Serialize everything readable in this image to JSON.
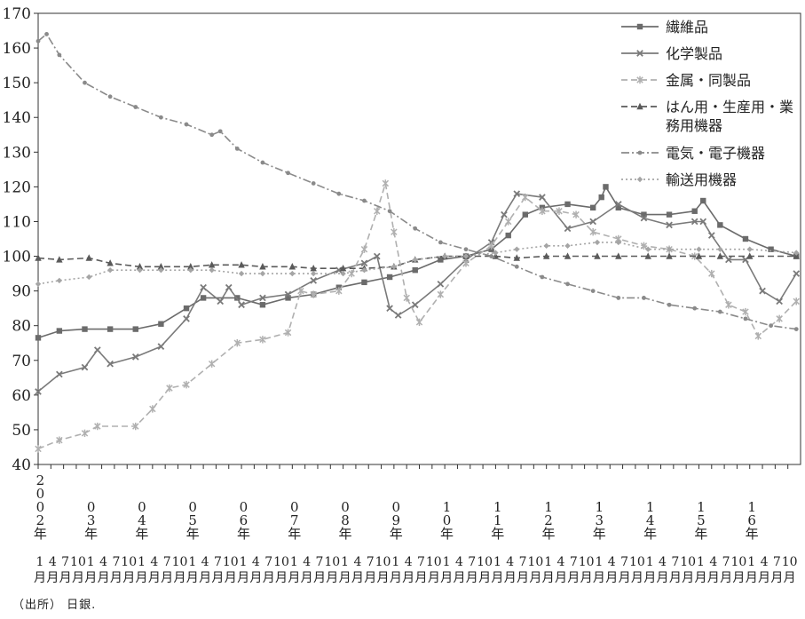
{
  "chart_data": {
    "type": "line",
    "title": "",
    "xlabel": "",
    "ylabel": "",
    "ylim": [
      40,
      170
    ],
    "yticks": [
      40,
      50,
      60,
      70,
      80,
      90,
      100,
      110,
      120,
      130,
      140,
      150,
      160,
      170
    ],
    "grid": false,
    "legend_position": "top-right",
    "x_range": [
      "2002-01",
      "2016-12"
    ],
    "x_years": [
      {
        "year": "2002",
        "year_chars": [
          "2",
          "0",
          "0",
          "2"
        ],
        "start": "2002-01"
      },
      {
        "year": "2003",
        "year_chars": [
          "0",
          "3"
        ],
        "start": "2003-01"
      },
      {
        "year": "2004",
        "year_chars": [
          "0",
          "4"
        ],
        "start": "2004-01"
      },
      {
        "year": "2005",
        "year_chars": [
          "0",
          "5"
        ],
        "start": "2005-01"
      },
      {
        "year": "2006",
        "year_chars": [
          "0",
          "6"
        ],
        "start": "2006-01"
      },
      {
        "year": "2007",
        "year_chars": [
          "0",
          "7"
        ],
        "start": "2007-01"
      },
      {
        "year": "2008",
        "year_chars": [
          "0",
          "8"
        ],
        "start": "2008-01"
      },
      {
        "year": "2009",
        "year_chars": [
          "0",
          "9"
        ],
        "start": "2009-01"
      },
      {
        "year": "2010",
        "year_chars": [
          "1",
          "0"
        ],
        "start": "2010-01"
      },
      {
        "year": "2011",
        "year_chars": [
          "1",
          "1"
        ],
        "start": "2011-01"
      },
      {
        "year": "2012",
        "year_chars": [
          "1",
          "2"
        ],
        "start": "2012-01"
      },
      {
        "year": "2013",
        "year_chars": [
          "1",
          "3"
        ],
        "start": "2013-01"
      },
      {
        "year": "2014",
        "year_chars": [
          "1",
          "4"
        ],
        "start": "2014-01"
      },
      {
        "year": "2015",
        "year_chars": [
          "1",
          "5"
        ],
        "start": "2015-01"
      },
      {
        "year": "2016",
        "year_chars": [
          "1",
          "6"
        ],
        "start": "2016-01"
      }
    ],
    "year_suffix": "年",
    "month_ticks": [
      "1",
      "4",
      "7",
      "10"
    ],
    "month_suffix": "月",
    "series": [
      {
        "name": "繊維品",
        "color": "#6b6b6b",
        "dash": "solid",
        "marker": "square",
        "points": [
          [
            "2002-01",
            76.5
          ],
          [
            "2002-06",
            78.5
          ],
          [
            "2002-12",
            79
          ],
          [
            "2003-06",
            79
          ],
          [
            "2003-12",
            79
          ],
          [
            "2004-06",
            80.5
          ],
          [
            "2004-12",
            85
          ],
          [
            "2005-04",
            88
          ],
          [
            "2005-12",
            88
          ],
          [
            "2006-06",
            86
          ],
          [
            "2006-12",
            88
          ],
          [
            "2007-06",
            89
          ],
          [
            "2007-12",
            91
          ],
          [
            "2008-06",
            92.5
          ],
          [
            "2008-12",
            94
          ],
          [
            "2009-06",
            96
          ],
          [
            "2009-12",
            99
          ],
          [
            "2010-06",
            100
          ],
          [
            "2010-12",
            102
          ],
          [
            "2011-04",
            106
          ],
          [
            "2011-08",
            112
          ],
          [
            "2011-12",
            114
          ],
          [
            "2012-06",
            115
          ],
          [
            "2012-12",
            114
          ],
          [
            "2013-02",
            117
          ],
          [
            "2013-03",
            120
          ],
          [
            "2013-06",
            114
          ],
          [
            "2013-12",
            112
          ],
          [
            "2014-06",
            112
          ],
          [
            "2014-12",
            113
          ],
          [
            "2015-02",
            116
          ],
          [
            "2015-06",
            109
          ],
          [
            "2015-12",
            105
          ],
          [
            "2016-06",
            102
          ],
          [
            "2016-12",
            100
          ]
        ]
      },
      {
        "name": "化学製品",
        "color": "#7a7a7a",
        "dash": "solid",
        "marker": "x",
        "points": [
          [
            "2002-01",
            61
          ],
          [
            "2002-06",
            66
          ],
          [
            "2002-12",
            68
          ],
          [
            "2003-03",
            73
          ],
          [
            "2003-06",
            69
          ],
          [
            "2003-12",
            71
          ],
          [
            "2004-06",
            74
          ],
          [
            "2004-12",
            82
          ],
          [
            "2005-04",
            91
          ],
          [
            "2005-08",
            87
          ],
          [
            "2005-10",
            91
          ],
          [
            "2006-01",
            86
          ],
          [
            "2006-06",
            88
          ],
          [
            "2006-12",
            89
          ],
          [
            "2007-06",
            93
          ],
          [
            "2007-12",
            96
          ],
          [
            "2008-06",
            98
          ],
          [
            "2008-09",
            100
          ],
          [
            "2008-12",
            85
          ],
          [
            "2009-02",
            83
          ],
          [
            "2009-06",
            86
          ],
          [
            "2009-12",
            92
          ],
          [
            "2010-06",
            99
          ],
          [
            "2010-12",
            104
          ],
          [
            "2011-03",
            112
          ],
          [
            "2011-06",
            118
          ],
          [
            "2011-12",
            117
          ],
          [
            "2012-06",
            108
          ],
          [
            "2012-12",
            110
          ],
          [
            "2013-06",
            115
          ],
          [
            "2013-12",
            111
          ],
          [
            "2014-06",
            109
          ],
          [
            "2014-12",
            110
          ],
          [
            "2015-02",
            110
          ],
          [
            "2015-04",
            106
          ],
          [
            "2015-08",
            99
          ],
          [
            "2015-12",
            99
          ],
          [
            "2016-04",
            90
          ],
          [
            "2016-08",
            87
          ],
          [
            "2016-12",
            95
          ]
        ]
      },
      {
        "name": "金属・同製品",
        "color": "#b0b0b0",
        "dash": "dashed",
        "marker": "asterisk",
        "points": [
          [
            "2002-01",
            44.5
          ],
          [
            "2002-06",
            47
          ],
          [
            "2002-12",
            49
          ],
          [
            "2003-03",
            51
          ],
          [
            "2003-12",
            51
          ],
          [
            "2004-04",
            56
          ],
          [
            "2004-08",
            62
          ],
          [
            "2004-12",
            63
          ],
          [
            "2005-06",
            69
          ],
          [
            "2005-12",
            75
          ],
          [
            "2006-06",
            76
          ],
          [
            "2006-12",
            78
          ],
          [
            "2007-03",
            90
          ],
          [
            "2007-06",
            89
          ],
          [
            "2007-12",
            90
          ],
          [
            "2008-03",
            95
          ],
          [
            "2008-06",
            102
          ],
          [
            "2008-09",
            113
          ],
          [
            "2008-11",
            121
          ],
          [
            "2009-01",
            107
          ],
          [
            "2009-04",
            88
          ],
          [
            "2009-07",
            81
          ],
          [
            "2009-12",
            89
          ],
          [
            "2010-06",
            98
          ],
          [
            "2010-12",
            103
          ],
          [
            "2011-04",
            110
          ],
          [
            "2011-08",
            117
          ],
          [
            "2011-12",
            113
          ],
          [
            "2012-04",
            113
          ],
          [
            "2012-08",
            112
          ],
          [
            "2012-12",
            107
          ],
          [
            "2013-06",
            105
          ],
          [
            "2013-12",
            103
          ],
          [
            "2014-06",
            102
          ],
          [
            "2014-12",
            100
          ],
          [
            "2015-04",
            95
          ],
          [
            "2015-08",
            86
          ],
          [
            "2015-12",
            84
          ],
          [
            "2016-03",
            77
          ],
          [
            "2016-08",
            82
          ],
          [
            "2016-12",
            87
          ]
        ]
      },
      {
        "name": "はん用・生産用・業務用機器",
        "color": "#5a5a5a",
        "dash": "dashed",
        "marker": "triangle",
        "points": [
          [
            "2002-01",
            99.5
          ],
          [
            "2002-06",
            99
          ],
          [
            "2003-01",
            99.5
          ],
          [
            "2003-06",
            98
          ],
          [
            "2004-01",
            97
          ],
          [
            "2004-06",
            97
          ],
          [
            "2005-01",
            97
          ],
          [
            "2005-06",
            97.5
          ],
          [
            "2006-01",
            97.5
          ],
          [
            "2006-06",
            97
          ],
          [
            "2007-01",
            97
          ],
          [
            "2007-06",
            96.5
          ],
          [
            "2008-01",
            96.5
          ],
          [
            "2008-06",
            96.5
          ],
          [
            "2009-01",
            97
          ],
          [
            "2009-06",
            99
          ],
          [
            "2010-01",
            100
          ],
          [
            "2010-06",
            100
          ],
          [
            "2011-01",
            100
          ],
          [
            "2011-06",
            99.5
          ],
          [
            "2012-01",
            100
          ],
          [
            "2012-06",
            100
          ],
          [
            "2013-01",
            100
          ],
          [
            "2013-06",
            100
          ],
          [
            "2014-01",
            100
          ],
          [
            "2014-06",
            100
          ],
          [
            "2015-01",
            100
          ],
          [
            "2015-06",
            100
          ],
          [
            "2016-01",
            100
          ],
          [
            "2016-12",
            100
          ]
        ]
      },
      {
        "name": "電気・電子機器",
        "color": "#8a8a8a",
        "dash": "dashdot",
        "marker": "dot",
        "points": [
          [
            "2002-01",
            162
          ],
          [
            "2002-03",
            164
          ],
          [
            "2002-06",
            158
          ],
          [
            "2002-12",
            150
          ],
          [
            "2003-06",
            146
          ],
          [
            "2003-12",
            143
          ],
          [
            "2004-06",
            140
          ],
          [
            "2004-12",
            138
          ],
          [
            "2005-06",
            135
          ],
          [
            "2005-08",
            136
          ],
          [
            "2005-12",
            131
          ],
          [
            "2006-06",
            127
          ],
          [
            "2006-12",
            124
          ],
          [
            "2007-06",
            121
          ],
          [
            "2007-12",
            118
          ],
          [
            "2008-06",
            116
          ],
          [
            "2008-12",
            113
          ],
          [
            "2009-06",
            108
          ],
          [
            "2009-12",
            104
          ],
          [
            "2010-06",
            102
          ],
          [
            "2010-12",
            100
          ],
          [
            "2011-06",
            97
          ],
          [
            "2011-12",
            94
          ],
          [
            "2012-06",
            92
          ],
          [
            "2012-12",
            90
          ],
          [
            "2013-06",
            88
          ],
          [
            "2013-12",
            88
          ],
          [
            "2014-06",
            86
          ],
          [
            "2014-12",
            85
          ],
          [
            "2015-06",
            84
          ],
          [
            "2015-12",
            82
          ],
          [
            "2016-06",
            80
          ],
          [
            "2016-12",
            79
          ]
        ]
      },
      {
        "name": "輸送用機器",
        "color": "#a5a5a5",
        "dash": "dotted",
        "marker": "diamond",
        "points": [
          [
            "2002-01",
            92
          ],
          [
            "2002-06",
            93
          ],
          [
            "2003-01",
            94
          ],
          [
            "2003-06",
            96
          ],
          [
            "2004-01",
            96
          ],
          [
            "2004-06",
            96
          ],
          [
            "2005-01",
            96
          ],
          [
            "2005-06",
            96
          ],
          [
            "2006-01",
            95
          ],
          [
            "2006-06",
            95
          ],
          [
            "2007-01",
            95
          ],
          [
            "2007-06",
            95
          ],
          [
            "2008-01",
            95
          ],
          [
            "2008-06",
            96
          ],
          [
            "2009-01",
            97
          ],
          [
            "2009-06",
            99
          ],
          [
            "2010-01",
            100
          ],
          [
            "2010-06",
            100
          ],
          [
            "2011-01",
            101
          ],
          [
            "2011-06",
            102
          ],
          [
            "2012-01",
            103
          ],
          [
            "2012-06",
            103
          ],
          [
            "2013-01",
            104
          ],
          [
            "2013-06",
            104
          ],
          [
            "2014-01",
            102
          ],
          [
            "2014-06",
            102
          ],
          [
            "2015-01",
            102
          ],
          [
            "2015-06",
            102
          ],
          [
            "2016-01",
            102
          ],
          [
            "2016-12",
            101
          ]
        ]
      }
    ]
  },
  "source_note": "（出所） 日銀."
}
